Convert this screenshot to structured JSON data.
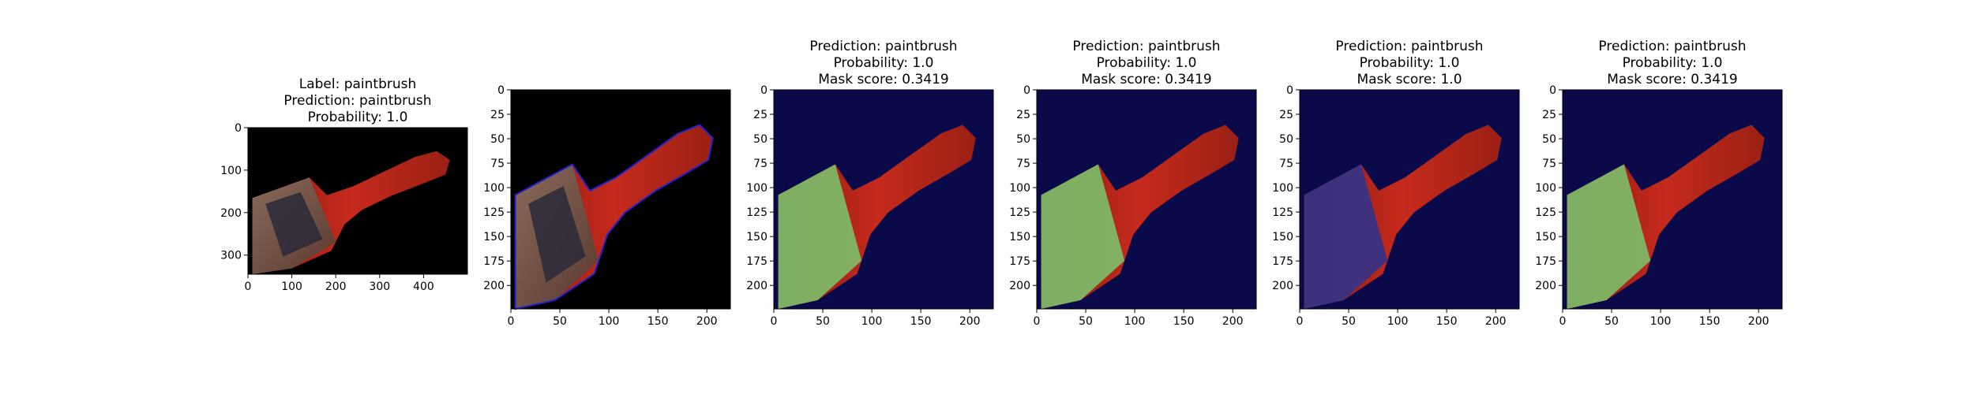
{
  "chart_data": [
    {
      "type": "image",
      "title_lines": [
        "Label: paintbrush",
        "Prediction: paintbrush",
        "Probability: 1.0"
      ],
      "overlay": "none",
      "xlim": [
        0,
        500
      ],
      "ylim": [
        345,
        0
      ],
      "xticks": [
        0,
        100,
        200,
        300,
        400
      ],
      "yticks": [
        0,
        100,
        200,
        300
      ]
    },
    {
      "type": "image",
      "title_lines": [],
      "overlay": "contour",
      "xlim": [
        0,
        224
      ],
      "ylim": [
        224,
        0
      ],
      "xticks": [
        0,
        50,
        100,
        150,
        200
      ],
      "yticks": [
        0,
        25,
        50,
        75,
        100,
        125,
        150,
        175,
        200
      ]
    },
    {
      "type": "image",
      "title_lines": [
        "Prediction: paintbrush",
        "Probability: 1.0",
        "Mask score: 0.3419"
      ],
      "overlay": "mask-partial",
      "xlim": [
        0,
        224
      ],
      "ylim": [
        224,
        0
      ],
      "xticks": [
        0,
        50,
        100,
        150,
        200
      ],
      "yticks": [
        0,
        25,
        50,
        75,
        100,
        125,
        150,
        175,
        200
      ]
    },
    {
      "type": "image",
      "title_lines": [
        "Prediction: paintbrush",
        "Probability: 1.0",
        "Mask score: 0.3419"
      ],
      "overlay": "mask-partial",
      "xlim": [
        0,
        224
      ],
      "ylim": [
        224,
        0
      ],
      "xticks": [
        0,
        50,
        100,
        150,
        200
      ],
      "yticks": [
        0,
        25,
        50,
        75,
        100,
        125,
        150,
        175,
        200
      ]
    },
    {
      "type": "image",
      "title_lines": [
        "Prediction: paintbrush",
        "Probability: 1.0",
        "Mask score: 1.0"
      ],
      "overlay": "mask-full",
      "xlim": [
        0,
        224
      ],
      "ylim": [
        224,
        0
      ],
      "xticks": [
        0,
        50,
        100,
        150,
        200
      ],
      "yticks": [
        0,
        25,
        50,
        75,
        100,
        125,
        150,
        175,
        200
      ]
    },
    {
      "type": "image",
      "title_lines": [
        "Prediction: paintbrush",
        "Probability: 1.0",
        "Mask score: 0.3419"
      ],
      "overlay": "mask-partial",
      "xlim": [
        0,
        224
      ],
      "ylim": [
        224,
        0
      ],
      "xticks": [
        0,
        50,
        100,
        150,
        200
      ],
      "yticks": [
        0,
        25,
        50,
        75,
        100,
        125,
        150,
        175,
        200
      ]
    }
  ],
  "colors": {
    "background_dark": "#000000",
    "mask_background": "#0a0a4a",
    "brush_red": "#b8231a",
    "bristle_green": "#7cbf6a",
    "bristle_dark": "#2a2a3a",
    "ferrule_blue": "#33338a",
    "contour_blue": "#2222cc"
  }
}
